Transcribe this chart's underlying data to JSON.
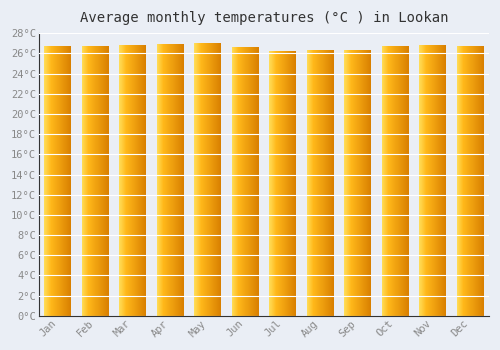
{
  "title": "Average monthly temperatures (°C ) in Lookan",
  "months": [
    "Jan",
    "Feb",
    "Mar",
    "Apr",
    "May",
    "Jun",
    "Jul",
    "Aug",
    "Sep",
    "Oct",
    "Nov",
    "Dec"
  ],
  "values": [
    26.7,
    26.7,
    26.8,
    26.9,
    27.0,
    26.6,
    26.2,
    26.3,
    26.3,
    26.7,
    26.8,
    26.7
  ],
  "ylim": [
    0,
    28
  ],
  "yticks": [
    0,
    2,
    4,
    6,
    8,
    10,
    12,
    14,
    16,
    18,
    20,
    22,
    24,
    26,
    28
  ],
  "bar_color_left": "#FFD740",
  "bar_color_mid": "#FFAA00",
  "bar_color_right": "#E08000",
  "bar_edge_color": "#CC8800",
  "background_color": "#EAEEF5",
  "plot_bg_color": "#EAEEF5",
  "grid_color": "#FFFFFF",
  "title_fontsize": 10,
  "tick_fontsize": 7.5,
  "tick_color": "#888888",
  "font_family": "monospace"
}
